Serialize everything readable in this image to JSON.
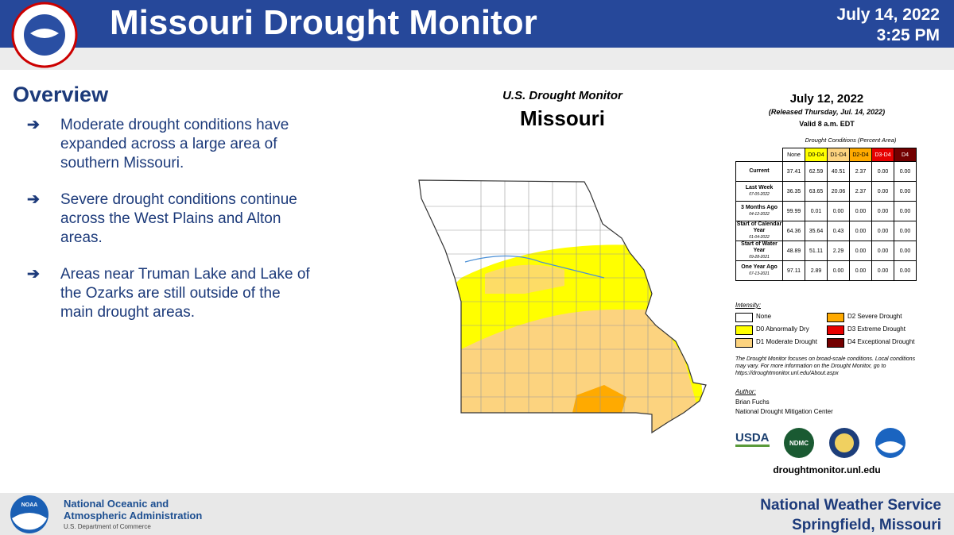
{
  "header": {
    "title": "Missouri Drought Monitor",
    "date": "July 14, 2022",
    "time": "3:25 PM"
  },
  "overview": {
    "title": "Overview",
    "bullets": [
      "Moderate drought conditions have expanded across a large area of southern Missouri.",
      "Severe drought conditions continue across the West Plains and Alton areas.",
      "Areas near Truman Lake and Lake of the Ozarks are still outside of the main drought areas."
    ]
  },
  "monitor": {
    "source": "U.S. Drought Monitor",
    "state": "Missouri",
    "date": "July 12, 2022",
    "released": "(Released Thursday, Jul. 14, 2022)",
    "valid": "Valid 8 a.m. EDT",
    "table": {
      "caption": "Drought Conditions (Percent Area)",
      "columns": [
        "None",
        "D0-D4",
        "D1-D4",
        "D2-D4",
        "D3-D4",
        "D4"
      ],
      "rows": [
        {
          "label": "Current",
          "values": [
            "37.41",
            "62.59",
            "40.51",
            "2.37",
            "0.00",
            "0.00"
          ]
        },
        {
          "label": "Last Week",
          "date": "07-05-2022",
          "values": [
            "36.35",
            "63.65",
            "20.06",
            "2.37",
            "0.00",
            "0.00"
          ]
        },
        {
          "label": "3 Months Ago",
          "date": "04-12-2022",
          "values": [
            "99.99",
            "0.01",
            "0.00",
            "0.00",
            "0.00",
            "0.00"
          ]
        },
        {
          "label": "Start of Calendar Year",
          "date": "01-04-2022",
          "values": [
            "64.36",
            "35.64",
            "0.43",
            "0.00",
            "0.00",
            "0.00"
          ]
        },
        {
          "label": "Start of Water Year",
          "date": "09-28-2021",
          "values": [
            "48.89",
            "51.11",
            "2.29",
            "0.00",
            "0.00",
            "0.00"
          ]
        },
        {
          "label": "One Year Ago",
          "date": "07-13-2021",
          "values": [
            "97.11",
            "2.89",
            "0.00",
            "0.00",
            "0.00",
            "0.00"
          ]
        }
      ]
    },
    "intensity": {
      "title": "Intensity:",
      "items": [
        {
          "label": "None",
          "color": "#ffffff"
        },
        {
          "label": "D0 Abnormally Dry",
          "color": "#ffff00"
        },
        {
          "label": "D1 Moderate Drought",
          "color": "#fcd37f"
        },
        {
          "label": "D2 Severe Drought",
          "color": "#ffaa00"
        },
        {
          "label": "D3 Extreme Drought",
          "color": "#e60000"
        },
        {
          "label": "D4 Exceptional Drought",
          "color": "#730000"
        }
      ]
    },
    "note": "The Drought Monitor focuses on broad-scale conditions. Local conditions may vary. For more information on the Drought Monitor, go to https://droughtmonitor.unl.edu/About.aspx",
    "author_title": "Author:",
    "author": "Brian Fuchs",
    "author_org": "National Drought Mitigation Center",
    "usda": "USDA",
    "ndmc": "NDMC",
    "website": "droughtmonitor.unl.edu"
  },
  "footer": {
    "noaa_logo": "NOAA",
    "noaa_name": "National Oceanic and Atmospheric Administration",
    "noaa_dept": "U.S. Department of Commerce",
    "nws": "National Weather Service",
    "office": "Springfield, Missouri"
  }
}
